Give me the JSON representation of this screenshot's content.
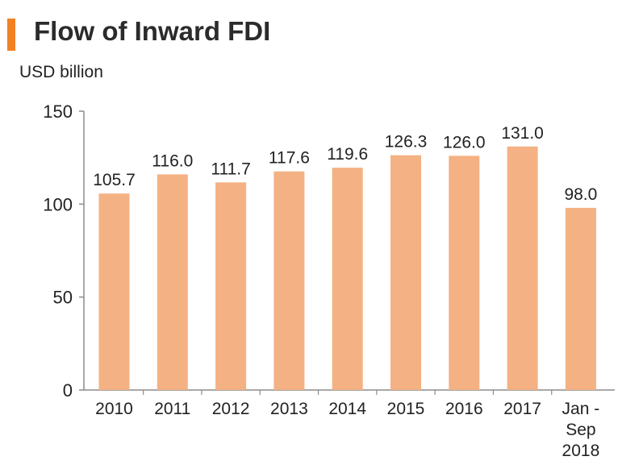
{
  "header": {
    "title": "Flow of Inward FDI",
    "unit_label": "USD billion"
  },
  "colors": {
    "accent": "#f28123",
    "bar": "#f4b183",
    "axis": "#8c8c8c"
  },
  "chart_data": {
    "type": "bar",
    "title": "Flow of Inward FDI",
    "ylabel": "USD billion",
    "xlabel": "",
    "ylim": [
      0,
      150
    ],
    "yticks": [
      0,
      50,
      100,
      150
    ],
    "grid": false,
    "categories": [
      "2010",
      "2011",
      "2012",
      "2013",
      "2014",
      "2015",
      "2016",
      "2017",
      "Jan - Sep 2018"
    ],
    "category_lines": [
      [
        "2010"
      ],
      [
        "2011"
      ],
      [
        "2012"
      ],
      [
        "2013"
      ],
      [
        "2014"
      ],
      [
        "2015"
      ],
      [
        "2016"
      ],
      [
        "2017"
      ],
      [
        "Jan -",
        "Sep",
        "2018"
      ]
    ],
    "values": [
      105.7,
      116.0,
      111.7,
      117.6,
      119.6,
      126.3,
      126.0,
      131.0,
      98.0
    ],
    "value_labels": [
      "105.7",
      "116.0",
      "111.7",
      "117.6",
      "119.6",
      "126.3",
      "126.0",
      "131.0",
      "98.0"
    ]
  }
}
